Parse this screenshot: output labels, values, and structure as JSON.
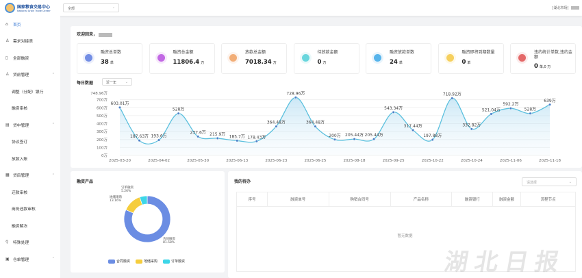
{
  "header": {
    "logo_title": "国家粮食交易中心",
    "logo_subtitle": "National Grain Trade Center",
    "org_select": "全部",
    "user": "[湖北市场]"
  },
  "sidebar": {
    "items": [
      {
        "label": "首页",
        "icon": "home-icon",
        "active": true
      },
      {
        "label": "需求对接表",
        "icon": "user-icon"
      },
      {
        "label": "全部融资",
        "icon": "document-icon"
      },
      {
        "label": "贷前管理",
        "icon": "user-icon",
        "group": true
      },
      {
        "label": "调整（分配）银行",
        "sub": true
      },
      {
        "label": "融资审核",
        "sub": true
      },
      {
        "label": "贷中管理",
        "icon": "file-icon",
        "group": true
      },
      {
        "label": "协议签订",
        "sub": true
      },
      {
        "label": "放款入账",
        "sub": true
      },
      {
        "label": "贷后管理",
        "icon": "grid-icon",
        "group": true
      },
      {
        "label": "还款审核",
        "sub": true
      },
      {
        "label": "商务还款审核",
        "sub": true
      },
      {
        "label": "融资解冻",
        "sub": true
      },
      {
        "label": "特殊处理",
        "icon": "pin-icon"
      },
      {
        "label": "仓单管理",
        "icon": "box-icon",
        "group": true
      }
    ]
  },
  "welcome": "欢迎回来，",
  "stats": [
    {
      "label": "融资总单数",
      "value": "38",
      "unit": "单",
      "color": "#5b7be0"
    },
    {
      "label": "融资总金额",
      "value": "11806.4",
      "unit": "万",
      "color": "#b84fe0"
    },
    {
      "label": "放款总金额",
      "value": "7018.34",
      "unit": "万",
      "color": "#f0a060"
    },
    {
      "label": "待放款金额",
      "value": "0",
      "unit": "万",
      "color": "#4fd0d8"
    },
    {
      "label": "融资放款单数",
      "value": "24",
      "unit": "单",
      "color": "#3aa8e8"
    },
    {
      "label": "融资即将到期数量",
      "value": "0",
      "unit": "单",
      "color": "#f5c842"
    },
    {
      "label": "违约统计单数,违约金额",
      "value": "0",
      "unit": "单,0 万",
      "color": "#e05050"
    }
  ],
  "daily": {
    "title": "每日数据",
    "range": "近一年"
  },
  "chart_data": {
    "type": "area",
    "title": "每日数据",
    "x": [
      "2025-03-20",
      "",
      "2025-04-02",
      "",
      "2025-05-30",
      "",
      "2025-06-13",
      "",
      "2025-06-23",
      "",
      "2025-06-25",
      "",
      "2025-08-18",
      "",
      "2025-09-25",
      "",
      "2025-10-22",
      "",
      "2025-10-24",
      "",
      "2025-11-06",
      "",
      "2025-11-18"
    ],
    "values": [
      603.01,
      187.63,
      193.6,
      528,
      237.6,
      215.9,
      185.7,
      178.43,
      364.48,
      728.96,
      364.48,
      200,
      205.44,
      205.44,
      543.34,
      317.44,
      197.88,
      718.92,
      332.82,
      521.04,
      592.2,
      528,
      639
    ],
    "value_suffix": "万",
    "yticks": [
      "0万",
      "100万",
      "200万",
      "300万",
      "400万",
      "500万",
      "600万",
      "700万"
    ],
    "ymax_label": "748.96万",
    "ylim": [
      0,
      748.96
    ],
    "color": "#5bc0de"
  },
  "products": {
    "title": "融资产品",
    "chart_data": {
      "type": "pie",
      "donut": true,
      "slices": [
        {
          "name": "合同融资",
          "value": 81.58,
          "label": "81.58%",
          "color": "#6b8de3"
        },
        {
          "name": "地储采购",
          "value": 13.16,
          "label": "13.16%",
          "color": "#f5cd3d"
        },
        {
          "name": "订单融资",
          "value": 5.26,
          "label": "5.26%",
          "color": "#3dd6e8"
        }
      ]
    }
  },
  "todo": {
    "title": "我的待办",
    "select_placeholder": "请选择",
    "columns": [
      "序号",
      "融资单号",
      "购销合同号",
      "产品名称",
      "融资银行",
      "融资金额",
      "流程节点"
    ],
    "empty": "暂无数据"
  },
  "watermark": "湖北日报"
}
